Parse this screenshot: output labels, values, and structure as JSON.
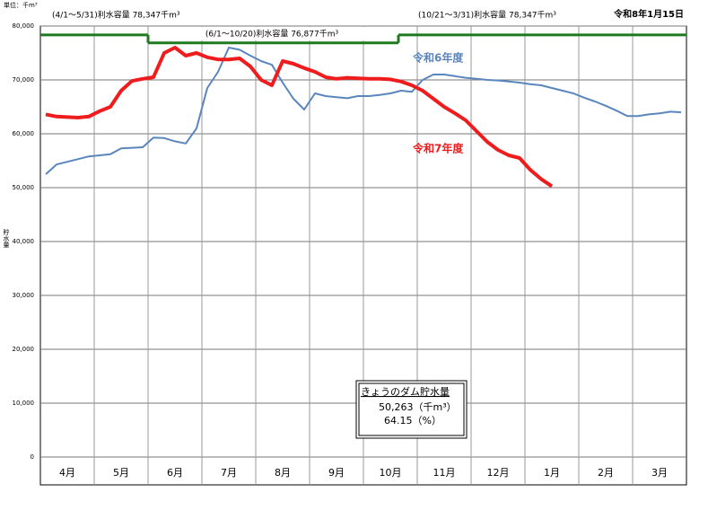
{
  "chart_data": {
    "type": "line",
    "date": "令和8年1月15日",
    "unit": "単位：千m³",
    "y_label": "貯水量",
    "ylim": [
      0,
      80000
    ],
    "yticks": [
      0,
      {
        "value": 10000,
        "label": "10,000"
      },
      {
        "value": 20000,
        "label": "20,000"
      },
      {
        "value": 30000,
        "label": "30,000"
      },
      {
        "value": 40000,
        "label": "40,000"
      },
      {
        "value": 50000,
        "label": "50,000"
      },
      {
        "value": 60000,
        "label": "60,000"
      },
      {
        "value": 70000,
        "label": "70,000"
      },
      {
        "value": 80000,
        "label": "80,000"
      }
    ],
    "grid": true,
    "categories": [
      null,
      null,
      "4月",
      null,
      null,
      null,
      null,
      "5月",
      null,
      null,
      null,
      null,
      "6月",
      null,
      null,
      null,
      null,
      "7月",
      null,
      null,
      null,
      null,
      "8月",
      null,
      null,
      null,
      null,
      "9月",
      null,
      null,
      null,
      null,
      "10月",
      null,
      null,
      null,
      null,
      "11月",
      null,
      null,
      null,
      null,
      "12月",
      null,
      null,
      null,
      null,
      "1月",
      null,
      null,
      null,
      null,
      "2月",
      null,
      null,
      null,
      null,
      "3月",
      null,
      null
    ],
    "capacity": {
      "color": "#1e7a1e",
      "segments": [
        {
          "label": "(4/1～5/31)利水容量 78,347千m³",
          "value": 78347
        },
        {
          "label": "(6/1～10/20)利水容量 76,877千m³",
          "value": 76877
        },
        {
          "label": "(10/21～3/31)利水容量 78,347千m³",
          "value": 78347
        }
      ]
    },
    "series": [
      {
        "name": "令和6年度",
        "color": "#5a86bd",
        "values": [
          52500,
          54300,
          54800,
          55300,
          55800,
          56000,
          56200,
          57300,
          57400,
          57500,
          59300,
          59200,
          58600,
          58200,
          61000,
          68500,
          71500,
          76000,
          75600,
          74500,
          73500,
          72800,
          69500,
          66500,
          64500,
          67500,
          67000,
          66800,
          66600,
          67000,
          67000,
          67200,
          67500,
          68000,
          67800,
          70000,
          71000,
          71000,
          70700,
          70400,
          70200,
          70000,
          69900,
          69700,
          69500,
          69200,
          69000,
          68500,
          68000,
          67500,
          66700,
          66000,
          65200,
          64300,
          63300,
          63300,
          63600,
          63800,
          64100,
          64000
        ]
      },
      {
        "name": "令和7年度",
        "color": "#ee1c1c",
        "values": [
          63600,
          63200,
          63100,
          63000,
          63200,
          64200,
          65000,
          68000,
          69800,
          70200,
          70500,
          75000,
          76000,
          74500,
          75000,
          74200,
          73800,
          73800,
          74000,
          72500,
          70000,
          69000,
          73500,
          73000,
          72200,
          71500,
          70500,
          70200,
          70400,
          70300,
          70200,
          70200,
          70100,
          69700,
          69000,
          68000,
          66500,
          65000,
          63800,
          62500,
          60500,
          58500,
          57000,
          56000,
          55500,
          53300,
          51600,
          50263,
          null,
          null,
          null,
          null,
          null,
          null,
          null,
          null,
          null,
          null,
          null,
          null
        ]
      }
    ],
    "today_box": {
      "title": "きょうのダム貯水量",
      "volume": "50,263（千m³）",
      "rate": "64.15（%）"
    }
  }
}
